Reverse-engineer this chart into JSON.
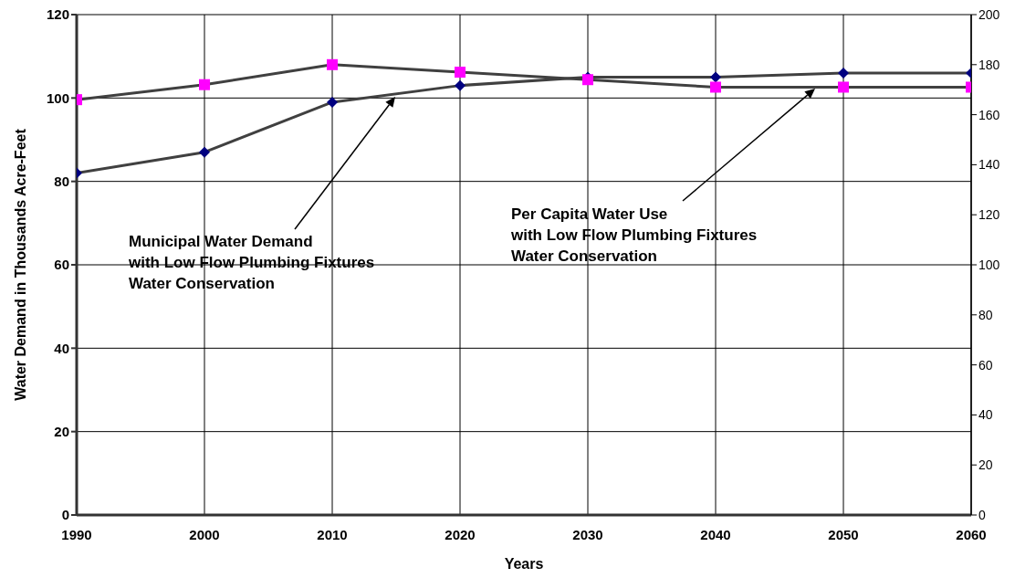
{
  "chart_data": {
    "type": "line",
    "x": [
      1990,
      2000,
      2010,
      2020,
      2030,
      2040,
      2050,
      2060
    ],
    "series": [
      {
        "color": "#000080",
        "marker": "diamond",
        "values": [
          82,
          87,
          99,
          103,
          105,
          105,
          106,
          106
        ]
      },
      {
        "color": "#ff00ff",
        "marker": "square",
        "axis": "y2",
        "values": [
          166,
          172,
          180,
          177,
          174,
          171,
          171,
          171
        ]
      }
    ],
    "xlim": [
      1990,
      2060
    ],
    "xticks": [
      1990,
      2000,
      2010,
      2020,
      2030,
      2040,
      2050,
      2060
    ],
    "ylim": [
      0,
      120
    ],
    "yticks": [
      0,
      20,
      40,
      60,
      80,
      100,
      120
    ],
    "y2lim": [
      0,
      200
    ],
    "y2ticks": [
      0,
      20,
      40,
      60,
      80,
      100,
      120,
      140,
      160,
      180,
      200
    ],
    "xlabel": "Years",
    "ylabel": "Water Demand in Thousands Acre-Feet",
    "grid": true,
    "annotations": [
      "Municipal Water Demand\nwith Low Flow Plumbing Fixtures\nWater Conservation",
      "Per Capita Water Use\nwith Low Flow Plumbing Fixtures\nWater Conservation"
    ]
  }
}
